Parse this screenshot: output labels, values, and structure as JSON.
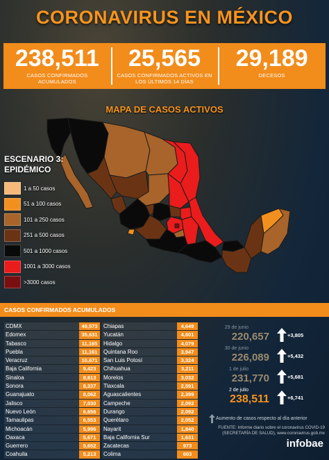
{
  "title": "CORONAVIRUS EN MÉXICO",
  "stats": [
    {
      "value": "238,511",
      "label": "CASOS CONFIRMADOS ACUMULADOS"
    },
    {
      "value": "25,565",
      "label": "CASOS CONFIRMADOS ACTIVOS EN LOS ÚLTIMOS 14 DÍAS"
    },
    {
      "value": "29,189",
      "label": "DECESOS"
    }
  ],
  "map": {
    "title": "MAPA DE CASOS ACTIVOS",
    "scenario_line1": "ESCENARIO 3:",
    "scenario_line2": "EPIDÉMICO"
  },
  "legend": [
    {
      "label": "1 a 50 casos",
      "color": "#f6b97a"
    },
    {
      "label": "51 a 100 casos",
      "color": "#f2901f"
    },
    {
      "label": "101 a 250 casos",
      "color": "#a8642a"
    },
    {
      "label": "251 a 500 casos",
      "color": "#6a3414"
    },
    {
      "label": "501 a 1000 casos",
      "color": "#0a0a0a"
    },
    {
      "label": "1001 a 3000 casos",
      "color": "#ea1c1c"
    },
    {
      "label": ">3000 casos",
      "color": "#7a0f12"
    }
  ],
  "cases_header": "CASOS CONFIRMADOS ACUMULADOS",
  "table_left": [
    {
      "state": "CDMX",
      "value": "49,573"
    },
    {
      "state": "Edomex",
      "value": "35,631"
    },
    {
      "state": "Tabasco",
      "value": "11,165"
    },
    {
      "state": "Puebla",
      "value": "11,161"
    },
    {
      "state": "Veracruz",
      "value": "10,671"
    },
    {
      "state": "Baja California",
      "value": "9,423"
    },
    {
      "state": "Sinaloa",
      "value": "8,613"
    },
    {
      "state": "Sonora",
      "value": "8,337"
    },
    {
      "state": "Guanajuato",
      "value": "8,062"
    },
    {
      "state": "Jalisco",
      "value": "7,030"
    },
    {
      "state": "Nuevo León",
      "value": "6,656"
    },
    {
      "state": "Tamaulipas",
      "value": "6,553"
    },
    {
      "state": "Michoacán",
      "value": "5,996"
    },
    {
      "state": "Oaxaca",
      "value": "5,671"
    },
    {
      "state": "Guerrero",
      "value": "5,652"
    },
    {
      "state": "Coahuila",
      "value": "5,213"
    }
  ],
  "table_right": [
    {
      "state": "Chiapas",
      "value": "4,649"
    },
    {
      "state": "Yucatán",
      "value": "4,601"
    },
    {
      "state": "Hidalgo",
      "value": "4,079"
    },
    {
      "state": "Quintana Roo",
      "value": "3,947"
    },
    {
      "state": "San Luis Potosí",
      "value": "3,324"
    },
    {
      "state": "Chihuahua",
      "value": "3,211"
    },
    {
      "state": "Morelos",
      "value": "3,032"
    },
    {
      "state": "Tlaxcala",
      "value": "2,591"
    },
    {
      "state": "Aguascalientes",
      "value": "2,399"
    },
    {
      "state": "Campeche",
      "value": "2,092"
    },
    {
      "state": "Durango",
      "value": "2,092"
    },
    {
      "state": "Querétaro",
      "value": "2,052"
    },
    {
      "state": "Nayarit",
      "value": "1,840"
    },
    {
      "state": "Baja California Sur",
      "value": "1,631"
    },
    {
      "state": "Zacatecas",
      "value": "973"
    },
    {
      "state": "Colima",
      "value": "603"
    }
  ],
  "trend": [
    {
      "date": "29 de junio",
      "value": "220,657",
      "delta": "+3,805"
    },
    {
      "date": "30 de junio",
      "value": "226,089",
      "delta": "+5,432"
    },
    {
      "date": "1 de julio",
      "value": "231,770",
      "delta": "+5,681"
    },
    {
      "date": "2 de julio",
      "value": "238,511",
      "delta": "+6,741"
    }
  ],
  "note": "Aumento de casos respecto al día anterior",
  "source_line1": "FUENTE: Informe diario sobre el coronavirus COVID-19",
  "source_line2": "(SECRETARÍA DE SALUD), www.coronavirus.gob.mx",
  "brand": "infobae"
}
